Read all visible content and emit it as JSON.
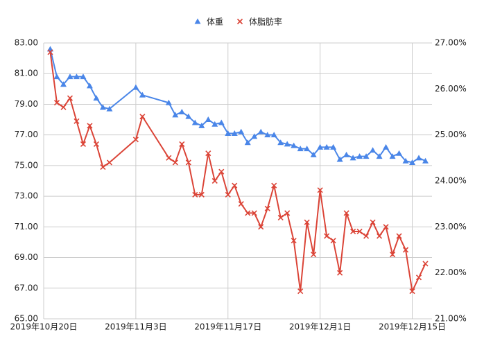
{
  "chart_data": {
    "type": "line",
    "x": [
      "2019-10-21",
      "2019-10-22",
      "2019-10-23",
      "2019-10-24",
      "2019-10-25",
      "2019-10-26",
      "2019-10-27",
      "2019-10-28",
      "2019-10-29",
      "2019-10-30",
      "2019-11-03",
      "2019-11-04",
      "2019-11-08",
      "2019-11-09",
      "2019-11-10",
      "2019-11-11",
      "2019-11-12",
      "2019-11-13",
      "2019-11-14",
      "2019-11-15",
      "2019-11-16",
      "2019-11-17",
      "2019-11-18",
      "2019-11-19",
      "2019-11-20",
      "2019-11-21",
      "2019-11-22",
      "2019-11-23",
      "2019-11-24",
      "2019-11-25",
      "2019-11-26",
      "2019-11-27",
      "2019-11-28",
      "2019-11-29",
      "2019-11-30",
      "2019-12-01",
      "2019-12-02",
      "2019-12-03",
      "2019-12-04",
      "2019-12-05",
      "2019-12-06",
      "2019-12-07",
      "2019-12-08",
      "2019-12-09",
      "2019-12-10",
      "2019-12-11",
      "2019-12-12",
      "2019-12-13",
      "2019-12-14",
      "2019-12-15",
      "2019-12-16",
      "2019-12-17"
    ],
    "series": [
      {
        "name": "体重",
        "color": "#4a86e8",
        "marker": "triangle",
        "values": [
          82.6,
          80.8,
          80.3,
          80.8,
          80.8,
          80.8,
          80.2,
          79.4,
          78.8,
          78.7,
          80.1,
          79.6,
          79.1,
          78.3,
          78.5,
          78.2,
          77.8,
          77.6,
          78.0,
          77.7,
          77.8,
          77.1,
          77.1,
          77.2,
          76.5,
          76.9,
          77.2,
          77.0,
          77.0,
          76.5,
          76.4,
          76.3,
          76.1,
          76.1,
          75.7,
          76.2,
          76.2,
          76.2,
          75.4,
          75.7,
          75.5,
          75.6,
          75.6,
          76.0,
          75.6,
          76.2,
          75.6,
          75.8,
          75.3,
          75.2,
          75.5,
          75.3
        ]
      },
      {
        "name": "体脂肪率",
        "color": "#db4437",
        "marker": "x",
        "axis": "y2",
        "values": [
          26.8,
          25.7,
          25.6,
          25.8,
          25.3,
          24.8,
          25.2,
          24.8,
          24.3,
          24.4,
          24.9,
          25.4,
          24.5,
          24.4,
          24.8,
          24.4,
          23.7,
          23.7,
          24.6,
          24.0,
          24.2,
          23.7,
          23.9,
          23.5,
          23.3,
          23.3,
          23.0,
          23.4,
          23.9,
          23.2,
          23.3,
          22.7,
          21.6,
          23.1,
          22.4,
          23.8,
          22.8,
          22.7,
          22.0,
          23.3,
          22.9,
          22.9,
          22.8,
          23.1,
          22.8,
          23.0,
          22.4,
          22.8,
          22.5,
          21.6,
          21.9,
          22.2
        ]
      }
    ],
    "xlim": [
      "2019-10-20",
      "2019-12-18"
    ],
    "xticks": [
      {
        "value": "2019-10-20",
        "label": "2019年10月20日"
      },
      {
        "value": "2019-11-03",
        "label": "2019年11月3日"
      },
      {
        "value": "2019-11-17",
        "label": "2019年11月17日"
      },
      {
        "value": "2019-12-01",
        "label": "2019年12月1日"
      },
      {
        "value": "2019-12-15",
        "label": "2019年12月15日"
      }
    ],
    "ylim": [
      65,
      83
    ],
    "yticks": [
      {
        "value": 65,
        "label": "65.00"
      },
      {
        "value": 67,
        "label": "67.00"
      },
      {
        "value": 69,
        "label": "69.00"
      },
      {
        "value": 71,
        "label": "71.00"
      },
      {
        "value": 73,
        "label": "73.00"
      },
      {
        "value": 75,
        "label": "75.00"
      },
      {
        "value": 77,
        "label": "77.00"
      },
      {
        "value": 79,
        "label": "79.00"
      },
      {
        "value": 81,
        "label": "81.00"
      },
      {
        "value": 83,
        "label": "83.00"
      }
    ],
    "y2lim": [
      21,
      27
    ],
    "y2ticks": [
      {
        "value": 21,
        "label": "21.00%"
      },
      {
        "value": 22,
        "label": "22.00%"
      },
      {
        "value": 23,
        "label": "23.00%"
      },
      {
        "value": 24,
        "label": "24.00%"
      },
      {
        "value": 25,
        "label": "25.00%"
      },
      {
        "value": 26,
        "label": "26.00%"
      },
      {
        "value": 27,
        "label": "27.00%"
      }
    ],
    "grid": true,
    "legend": "top"
  }
}
